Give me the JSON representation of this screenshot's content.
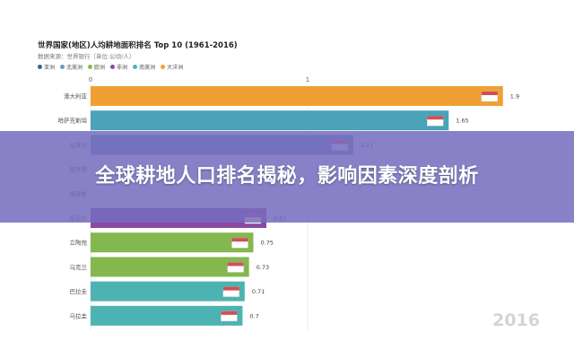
{
  "banner": {
    "headline": "全球耕地人口排名揭秘，影响因素深度剖析"
  },
  "chart_data": {
    "type": "bar",
    "orientation": "horizontal",
    "title": "世界国家(地区)人均耕地面积排名 Top 10 (1961-2016)",
    "subtitle": "数据来源：世界银行（单位:公顷/人）",
    "year_label": "2016",
    "xlim": [
      0,
      2
    ],
    "x_ticks": [
      "0",
      "1"
    ],
    "grid": true,
    "legend_position": "top-left",
    "legend": [
      {
        "name": "亚洲",
        "color": "#3f5f8f"
      },
      {
        "name": "北美洲",
        "color": "#6b97c8"
      },
      {
        "name": "欧洲",
        "color": "#84b84f"
      },
      {
        "name": "非洲",
        "color": "#8a4aa0"
      },
      {
        "name": "南美洲",
        "color": "#4db3b2"
      },
      {
        "name": "大洋洲",
        "color": "#f0a033"
      }
    ],
    "categories": [
      "澳大利亚",
      "哈萨克斯坦",
      "加拿大",
      "俄罗斯",
      "俄罗斯",
      "尼日尔",
      "立陶宛",
      "乌克兰",
      "巴拉圭",
      "乌拉圭"
    ],
    "values": [
      1.9,
      1.65,
      1.21,
      null,
      null,
      0.81,
      0.75,
      0.73,
      0.71,
      0.7
    ],
    "value_labels": [
      "1.9",
      "1.65",
      "1.21",
      "",
      "",
      "0.81",
      "0.75",
      "0.73",
      "0.71",
      "0.7"
    ],
    "bar_colors": [
      "#f0a033",
      "#4aa3b8",
      "#6b97c8",
      "#3f5f8f",
      "#3f5f8f",
      "#8a4aa0",
      "#84b84f",
      "#84b84f",
      "#4db3b2",
      "#4db3b2"
    ],
    "flags": [
      "australia-flag",
      "kazakhstan-flag",
      "canada-flag",
      "russia-flag",
      "russia-flag",
      "niger-flag",
      "lithuania-flag",
      "ukraine-flag",
      "paraguay-flag",
      "uruguay-flag"
    ]
  }
}
